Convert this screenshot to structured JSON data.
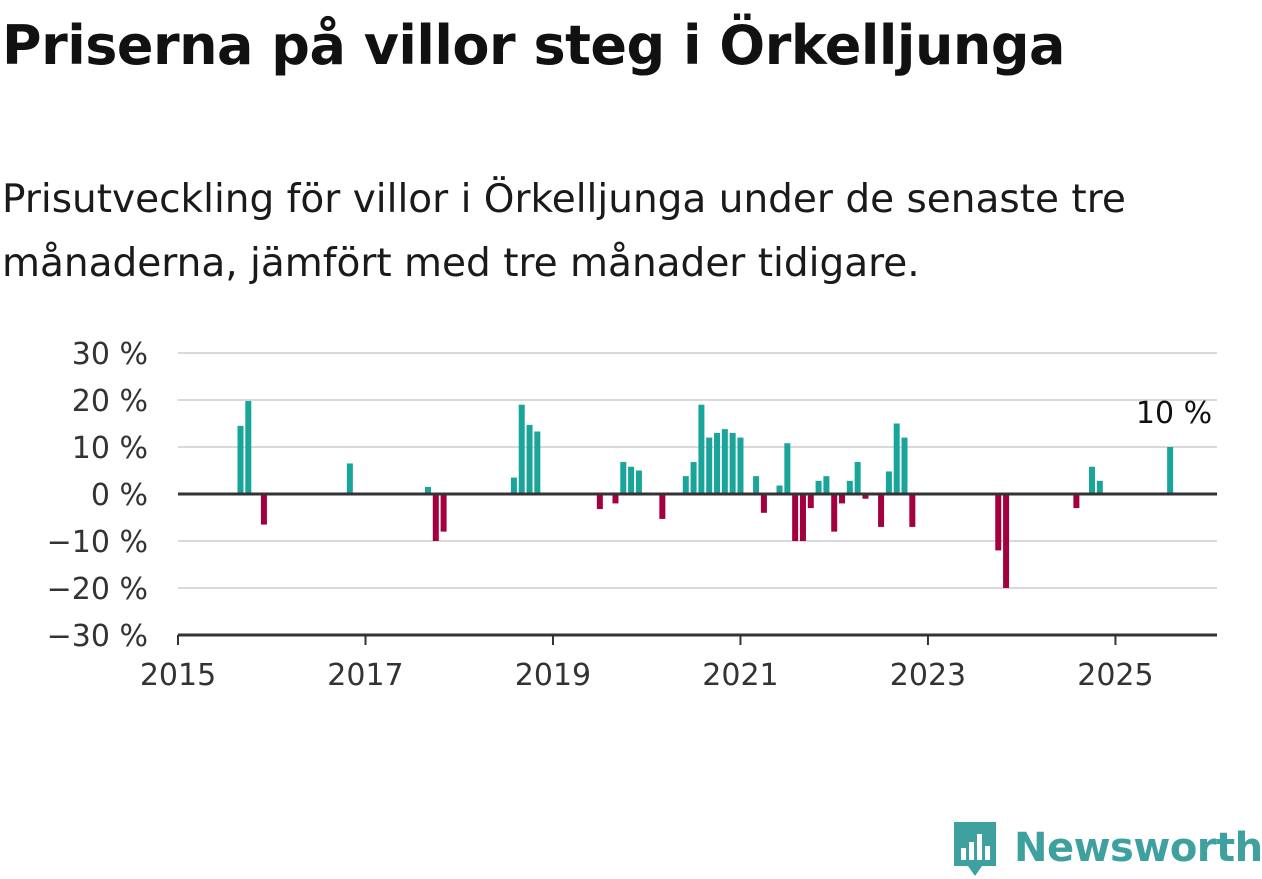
{
  "title": "Priserna på villor steg i Örkelljunga",
  "subtitle": "Prisutveckling för villor i Örkelljunga under de senaste tre månaderna, jämfört med tre månader tidigare.",
  "brand": {
    "name": "Newsworthy",
    "icon": "newsworthy-logo-icon"
  },
  "colors": {
    "positive": "#1aa59a",
    "negative": "#a3003f",
    "grid": "#d9d9d9",
    "axis": "#333333"
  },
  "chart_data": {
    "type": "bar",
    "title": "Priserna på villor steg i Örkelljunga",
    "xlabel": "",
    "ylabel": "",
    "xlim": [
      "2015-01",
      "2026-02"
    ],
    "ylim": [
      -30,
      30
    ],
    "y_ticks": [
      30,
      20,
      10,
      0,
      -10,
      -20,
      -30
    ],
    "y_tick_labels": [
      "30 %",
      "20 %",
      "10 %",
      "0 %",
      "−10 %",
      "−20 %",
      "−30 %"
    ],
    "x_tick_labels": [
      "2015",
      "2017",
      "2019",
      "2021",
      "2023",
      "2025"
    ],
    "grid": true,
    "annotation": {
      "text": "10 %",
      "date": "2025-08"
    },
    "series": [
      {
        "points": [
          {
            "date": "2015-09",
            "value": 14.5
          },
          {
            "date": "2015-10",
            "value": 19.8
          },
          {
            "date": "2015-12",
            "value": -6.5
          },
          {
            "date": "2016-11",
            "value": 6.5
          },
          {
            "date": "2017-09",
            "value": 1.5
          },
          {
            "date": "2017-10",
            "value": -10
          },
          {
            "date": "2017-11",
            "value": -8
          },
          {
            "date": "2018-08",
            "value": 3.5
          },
          {
            "date": "2018-09",
            "value": 19
          },
          {
            "date": "2018-10",
            "value": 14.7
          },
          {
            "date": "2018-11",
            "value": 13.3
          },
          {
            "date": "2019-07",
            "value": -3.2
          },
          {
            "date": "2019-09",
            "value": -2
          },
          {
            "date": "2019-10",
            "value": 6.8
          },
          {
            "date": "2019-11",
            "value": 5.8
          },
          {
            "date": "2019-12",
            "value": 5
          },
          {
            "date": "2020-03",
            "value": -5.3
          },
          {
            "date": "2020-06",
            "value": 3.8
          },
          {
            "date": "2020-07",
            "value": 6.8
          },
          {
            "date": "2020-08",
            "value": 19
          },
          {
            "date": "2020-09",
            "value": 12
          },
          {
            "date": "2020-10",
            "value": 13
          },
          {
            "date": "2020-11",
            "value": 13.8
          },
          {
            "date": "2020-12",
            "value": 13
          },
          {
            "date": "2021-01",
            "value": 12
          },
          {
            "date": "2021-03",
            "value": 3.8
          },
          {
            "date": "2021-04",
            "value": -4
          },
          {
            "date": "2021-06",
            "value": 1.8
          },
          {
            "date": "2021-07",
            "value": 10.8
          },
          {
            "date": "2021-08",
            "value": -10
          },
          {
            "date": "2021-09",
            "value": -10
          },
          {
            "date": "2021-10",
            "value": -3
          },
          {
            "date": "2021-11",
            "value": 2.8
          },
          {
            "date": "2021-12",
            "value": 3.8
          },
          {
            "date": "2022-01",
            "value": -8
          },
          {
            "date": "2022-02",
            "value": -2
          },
          {
            "date": "2022-03",
            "value": 2.8
          },
          {
            "date": "2022-04",
            "value": 6.8
          },
          {
            "date": "2022-05",
            "value": -1
          },
          {
            "date": "2022-07",
            "value": -7
          },
          {
            "date": "2022-08",
            "value": 4.8
          },
          {
            "date": "2022-09",
            "value": 15
          },
          {
            "date": "2022-10",
            "value": 12
          },
          {
            "date": "2022-11",
            "value": -7
          },
          {
            "date": "2023-10",
            "value": -12
          },
          {
            "date": "2023-11",
            "value": -20
          },
          {
            "date": "2024-08",
            "value": -3
          },
          {
            "date": "2024-10",
            "value": 5.8
          },
          {
            "date": "2024-11",
            "value": 2.8
          },
          {
            "date": "2025-08",
            "value": 10
          }
        ]
      }
    ]
  }
}
